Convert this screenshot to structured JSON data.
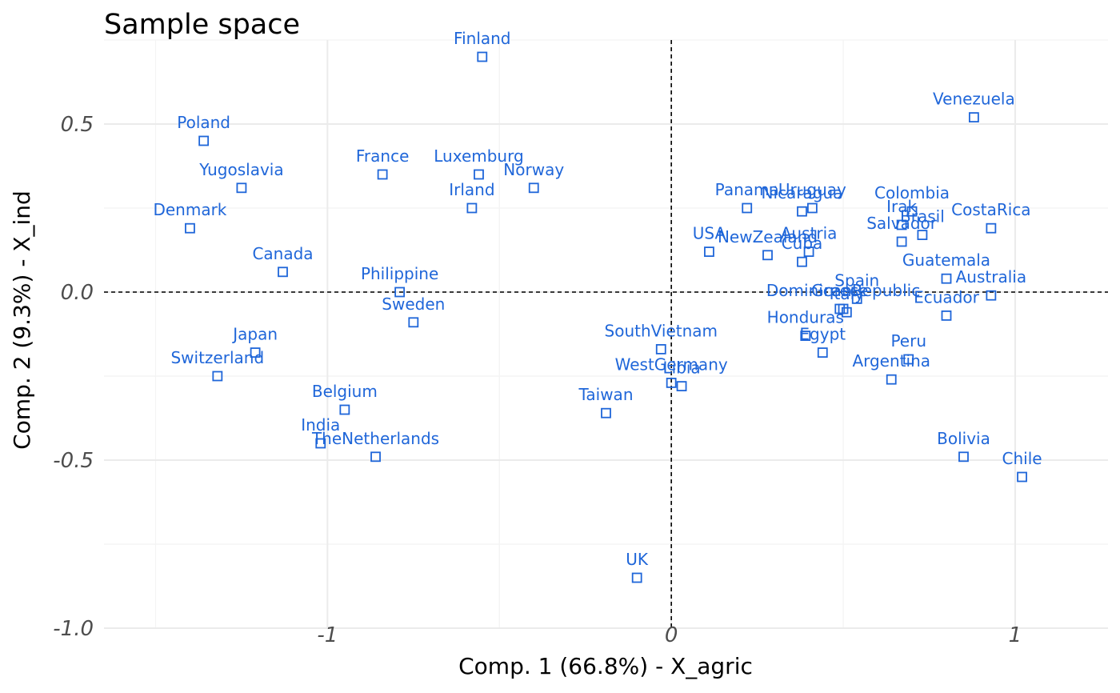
{
  "colors": {
    "points": "#1f66d9",
    "labels": "#1f66d9"
  },
  "chart_data": {
    "type": "scatter",
    "title": "Sample space",
    "xlabel": "Comp. 1 (66.8%) - X_agric",
    "ylabel": "Comp. 2 (9.3%) - X_ind",
    "xlim": [
      -1.65,
      1.27
    ],
    "ylim": [
      -1.0,
      0.75
    ],
    "xticks": [
      -1,
      0,
      1
    ],
    "xtick_labels": [
      "-1",
      "0",
      "1"
    ],
    "yticks": [
      -1.0,
      -0.5,
      0.0,
      0.5
    ],
    "ytick_labels": [
      "-1.0",
      "-0.5",
      "0.0",
      "0.5"
    ],
    "reference_lines": {
      "x": 0,
      "y": 0
    },
    "grid": true,
    "marker": "open-square",
    "points": [
      {
        "label": "Finland",
        "x": -0.55,
        "y": 0.7
      },
      {
        "label": "Poland",
        "x": -1.36,
        "y": 0.45
      },
      {
        "label": "France",
        "x": -0.84,
        "y": 0.35
      },
      {
        "label": "Luxemburg",
        "x": -0.56,
        "y": 0.35
      },
      {
        "label": "Norway",
        "x": -0.4,
        "y": 0.31
      },
      {
        "label": "Yugoslavia",
        "x": -1.25,
        "y": 0.31
      },
      {
        "label": "Irland",
        "x": -0.58,
        "y": 0.25
      },
      {
        "label": "Denmark",
        "x": -1.4,
        "y": 0.19
      },
      {
        "label": "Canada",
        "x": -1.13,
        "y": 0.06
      },
      {
        "label": "Philippine",
        "x": -0.79,
        "y": 0.0
      },
      {
        "label": "Sweden",
        "x": -0.75,
        "y": -0.09
      },
      {
        "label": "Japan",
        "x": -1.21,
        "y": -0.18
      },
      {
        "label": "Switzerland",
        "x": -1.32,
        "y": -0.25
      },
      {
        "label": "Belgium",
        "x": -0.95,
        "y": -0.35
      },
      {
        "label": "India",
        "x": -1.02,
        "y": -0.45
      },
      {
        "label": "TheNetherlands",
        "x": -0.86,
        "y": -0.49
      },
      {
        "label": "SouthVietnam",
        "x": -0.03,
        "y": -0.17
      },
      {
        "label": "WestGermany",
        "x": 0.0,
        "y": -0.27
      },
      {
        "label": "Libia",
        "x": 0.03,
        "y": -0.28
      },
      {
        "label": "Taiwan",
        "x": -0.19,
        "y": -0.36
      },
      {
        "label": "UK",
        "x": -0.1,
        "y": -0.85
      },
      {
        "label": "Venezuela",
        "x": 0.88,
        "y": 0.52
      },
      {
        "label": "Panama",
        "x": 0.22,
        "y": 0.25
      },
      {
        "label": "Uruguay",
        "x": 0.41,
        "y": 0.25
      },
      {
        "label": "Nicaragua",
        "x": 0.38,
        "y": 0.24
      },
      {
        "label": "Colombia",
        "x": 0.7,
        "y": 0.24
      },
      {
        "label": "Irak",
        "x": 0.67,
        "y": 0.2
      },
      {
        "label": "Brasil",
        "x": 0.73,
        "y": 0.17
      },
      {
        "label": "CostaRica",
        "x": 0.93,
        "y": 0.19
      },
      {
        "label": "Salvador",
        "x": 0.67,
        "y": 0.15
      },
      {
        "label": "USA",
        "x": 0.11,
        "y": 0.12
      },
      {
        "label": "NewZealand",
        "x": 0.28,
        "y": 0.11
      },
      {
        "label": "Austria",
        "x": 0.4,
        "y": 0.12
      },
      {
        "label": "Cuba",
        "x": 0.38,
        "y": 0.09
      },
      {
        "label": "Guatemala",
        "x": 0.8,
        "y": 0.04
      },
      {
        "label": "Australia",
        "x": 0.93,
        "y": -0.01
      },
      {
        "label": "Spain",
        "x": 0.54,
        "y": -0.02
      },
      {
        "label": "DominicanRepublic",
        "x": 0.5,
        "y": -0.05
      },
      {
        "label": "Italy",
        "x": 0.51,
        "y": -0.06
      },
      {
        "label": "Greece",
        "x": 0.49,
        "y": -0.05
      },
      {
        "label": "Ecuador",
        "x": 0.8,
        "y": -0.07
      },
      {
        "label": "Honduras",
        "x": 0.39,
        "y": -0.13
      },
      {
        "label": "Egypt",
        "x": 0.44,
        "y": -0.18
      },
      {
        "label": "Peru",
        "x": 0.69,
        "y": -0.2
      },
      {
        "label": "Argentina",
        "x": 0.64,
        "y": -0.26
      },
      {
        "label": "Bolivia",
        "x": 0.85,
        "y": -0.49
      },
      {
        "label": "Chile",
        "x": 1.02,
        "y": -0.55
      }
    ]
  }
}
